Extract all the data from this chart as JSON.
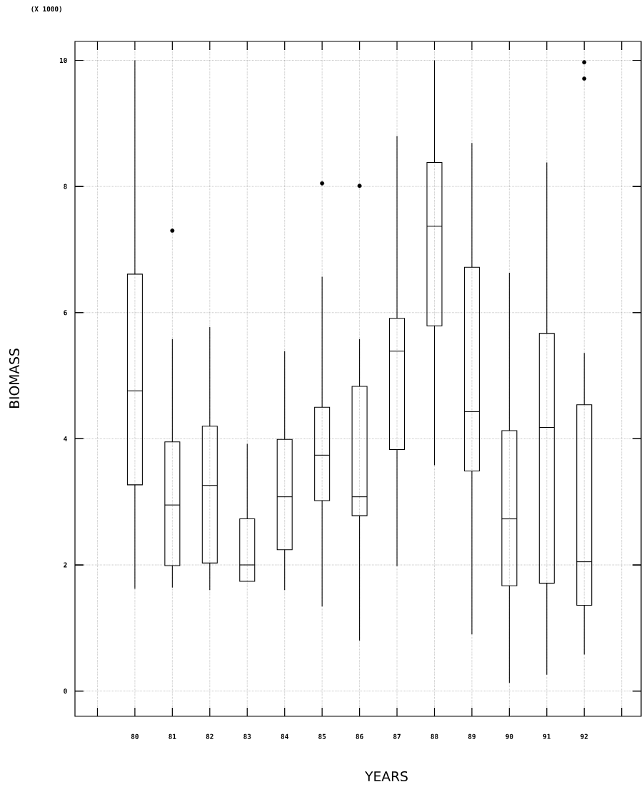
{
  "chart_data": {
    "type": "box",
    "xlabel": "YEARS",
    "ylabel": "BIOMASS",
    "annotations": [
      "(X 1000)"
    ],
    "categories": [
      "80",
      "81",
      "82",
      "83",
      "84",
      "85",
      "86",
      "87",
      "88",
      "89",
      "90",
      "91",
      "92"
    ],
    "boxes": [
      {
        "low": 1.62,
        "q1": 3.27,
        "median": 4.76,
        "q3": 6.61,
        "high": 10
      },
      {
        "low": 1.64,
        "q1": 1.99,
        "median": 2.95,
        "q3": 3.95,
        "high": 5.58,
        "outliers": [
          7.3
        ]
      },
      {
        "low": 1.6,
        "q1": 2.03,
        "median": 3.26,
        "q3": 4.2,
        "high": 5.77
      },
      {
        "low": 1.74,
        "q1": 1.74,
        "median": 2.0,
        "q3": 2.73,
        "high": 3.92
      },
      {
        "low": 1.6,
        "q1": 2.24,
        "median": 3.08,
        "q3": 3.99,
        "high": 5.39
      },
      {
        "low": 1.34,
        "q1": 3.02,
        "median": 3.74,
        "q3": 4.5,
        "high": 6.57,
        "outliers": [
          8.05
        ]
      },
      {
        "low": 0.8,
        "q1": 2.78,
        "median": 3.08,
        "q3": 4.83,
        "high": 5.58,
        "outliers": [
          8.01
        ]
      },
      {
        "low": 1.98,
        "q1": 3.83,
        "median": 5.39,
        "q3": 5.91,
        "high": 8.8
      },
      {
        "low": 3.58,
        "q1": 5.79,
        "median": 7.37,
        "q3": 8.38,
        "high": 10
      },
      {
        "low": 0.9,
        "q1": 3.49,
        "median": 4.43,
        "q3": 6.72,
        "high": 8.69
      },
      {
        "low": 0.13,
        "q1": 1.67,
        "median": 2.73,
        "q3": 4.13,
        "high": 6.63
      },
      {
        "low": 0.26,
        "q1": 1.71,
        "median": 4.18,
        "q3": 5.67,
        "high": 8.38
      },
      {
        "low": 0.58,
        "q1": 1.36,
        "median": 2.05,
        "q3": 4.54,
        "high": 5.36,
        "outliers": [
          9.71,
          9.97
        ]
      }
    ],
    "ylim": [
      -0.4,
      10.3
    ],
    "yticks": [
      0,
      2,
      4,
      6,
      8,
      10
    ],
    "grid": true
  }
}
